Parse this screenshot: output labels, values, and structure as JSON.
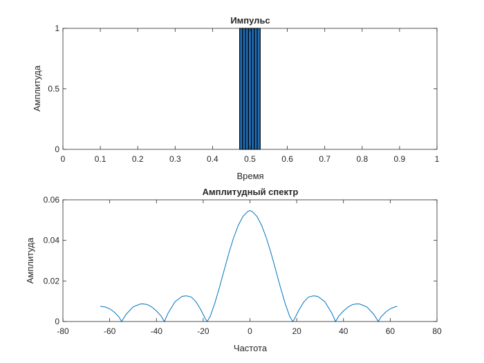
{
  "chart_data": [
    {
      "type": "bar",
      "title": "Импульс",
      "xlabel": "Время",
      "ylabel": "Амплитуда",
      "xlim": [
        0,
        1
      ],
      "ylim": [
        0,
        1
      ],
      "xticks": [
        "0",
        "0.1",
        "0.2",
        "0.3",
        "0.4",
        "0.5",
        "0.6",
        "0.7",
        "0.8",
        "0.9",
        "1"
      ],
      "yticks": [
        "0",
        "0.5",
        "1"
      ],
      "x": [
        0.4765,
        0.4844,
        0.4922,
        0.5,
        0.5078,
        0.5156,
        0.5234
      ],
      "values": [
        1,
        1,
        1,
        1,
        1,
        1,
        1
      ],
      "bar_color": "#1f6db4",
      "edge_color": "#000000"
    },
    {
      "type": "line",
      "title": "Амплитудный спектр",
      "xlabel": "Частота",
      "ylabel": "Амплитуда",
      "xlim": [
        -80,
        80
      ],
      "ylim": [
        0,
        0.06
      ],
      "xticks": [
        "-80",
        "-60",
        "-40",
        "-20",
        "0",
        "20",
        "40",
        "60",
        "80"
      ],
      "yticks": [
        "0",
        "0.02",
        "0.04",
        "0.06"
      ],
      "color": "#0072bd",
      "x": [
        -64,
        -62,
        -60,
        -58,
        -56,
        -54.9,
        -53,
        -50,
        -47,
        -45.8,
        -44,
        -42,
        -40,
        -38,
        -36.6,
        -35,
        -32,
        -29,
        -27.2,
        -25,
        -23,
        -21,
        -19,
        -18.3,
        -17,
        -15,
        -13,
        -11,
        -9,
        -7,
        -5,
        -3,
        -1,
        0,
        1,
        3,
        5,
        7,
        9,
        11,
        13,
        15,
        17,
        18.3,
        19,
        21,
        23,
        25,
        27.2,
        29,
        32,
        35,
        36.6,
        38,
        40,
        42,
        44,
        45.8,
        47,
        50,
        53,
        54.9,
        56,
        58,
        60,
        62,
        63
      ],
      "y": [
        0.0075,
        0.0072,
        0.0063,
        0.0046,
        0.0022,
        0.0,
        0.0035,
        0.0072,
        0.0086,
        0.0087,
        0.0084,
        0.0072,
        0.0052,
        0.0027,
        0.0,
        0.0042,
        0.0098,
        0.0124,
        0.0127,
        0.012,
        0.0096,
        0.0058,
        0.0012,
        0.0,
        0.0025,
        0.0091,
        0.017,
        0.0255,
        0.0338,
        0.0413,
        0.0474,
        0.0518,
        0.0542,
        0.0547,
        0.0542,
        0.0518,
        0.0474,
        0.0413,
        0.0338,
        0.0255,
        0.017,
        0.0091,
        0.0025,
        0.0,
        0.0012,
        0.0058,
        0.0096,
        0.012,
        0.0127,
        0.0124,
        0.0098,
        0.0042,
        0.0,
        0.0027,
        0.0052,
        0.0072,
        0.0084,
        0.0087,
        0.0086,
        0.0072,
        0.0035,
        0.0,
        0.0022,
        0.0046,
        0.0063,
        0.0072,
        0.0075
      ]
    }
  ]
}
